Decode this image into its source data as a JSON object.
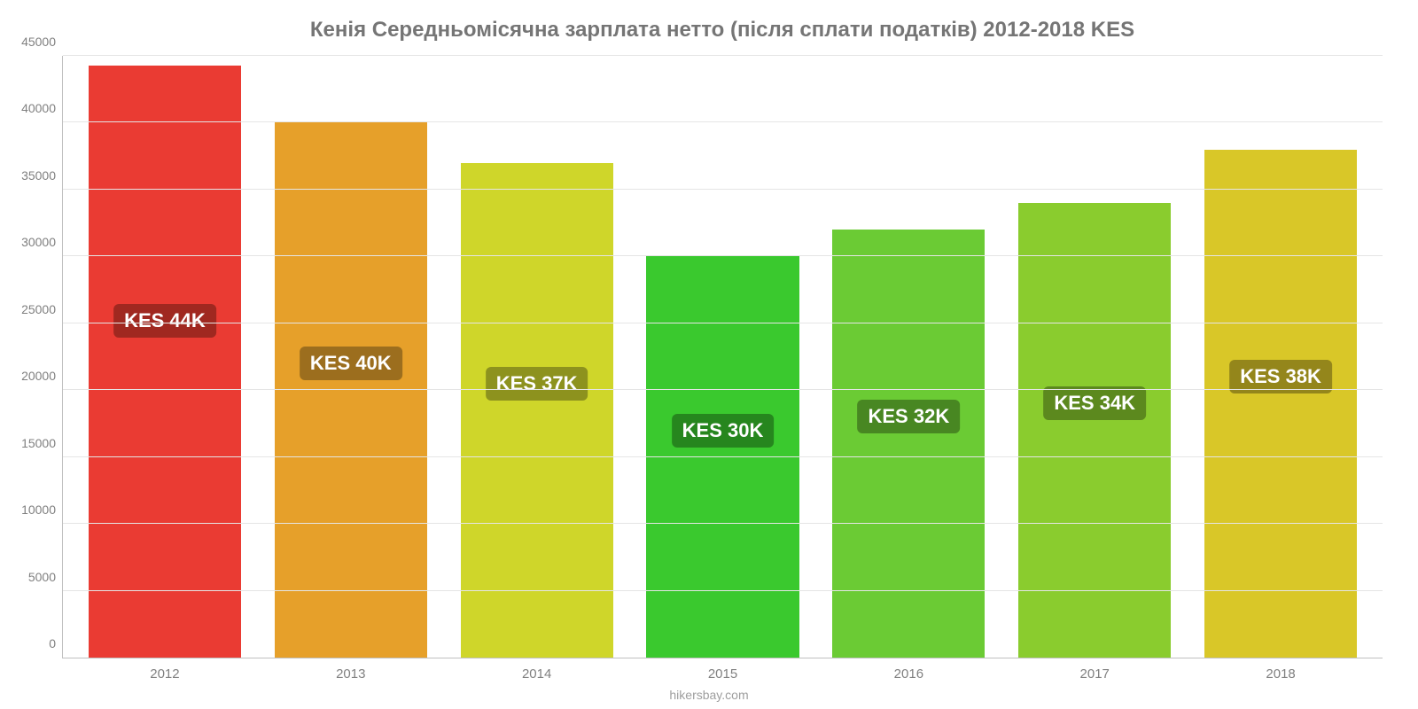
{
  "chart": {
    "type": "bar",
    "title": "Кенія Середньомісячна зарплата нетто (після сплати податків) 2012-2018 KES",
    "title_fontsize": 24,
    "title_color": "#757575",
    "attribution": "hikersbay.com",
    "background_color": "#ffffff",
    "grid_color": "#e5e5e5",
    "axis_color": "#c0c0c0",
    "tick_label_color": "#808080",
    "tick_label_fontsize": 14,
    "ylim": [
      0,
      45000
    ],
    "ytick_step": 5000,
    "yticks": [
      {
        "value": 0,
        "label": "0"
      },
      {
        "value": 5000,
        "label": "5000"
      },
      {
        "value": 10000,
        "label": "10000"
      },
      {
        "value": 15000,
        "label": "15000"
      },
      {
        "value": 20000,
        "label": "20000"
      },
      {
        "value": 25000,
        "label": "25000"
      },
      {
        "value": 30000,
        "label": "30000"
      },
      {
        "value": 35000,
        "label": "35000"
      },
      {
        "value": 40000,
        "label": "40000"
      },
      {
        "value": 45000,
        "label": "45000"
      }
    ],
    "bar_width": 0.82,
    "badge_fontsize": 22,
    "badge_text_color": "#ffffff",
    "data": [
      {
        "category": "2012",
        "value": 44300,
        "label": "KES 44K",
        "bar_color": "#ea3b33",
        "badge_color": "#a02820",
        "badge_y": 25200
      },
      {
        "category": "2013",
        "value": 40000,
        "label": "KES 40K",
        "bar_color": "#e6a02a",
        "badge_color": "#9c6e1e",
        "badge_y": 22000
      },
      {
        "category": "2014",
        "value": 37000,
        "label": "KES 37K",
        "bar_color": "#cfd62a",
        "badge_color": "#8d921e",
        "badge_y": 20500
      },
      {
        "category": "2015",
        "value": 30000,
        "label": "KES 30K",
        "bar_color": "#3ac92e",
        "badge_color": "#26861e",
        "badge_y": 17000
      },
      {
        "category": "2016",
        "value": 32000,
        "label": "KES 32K",
        "bar_color": "#6bcb34",
        "badge_color": "#488722",
        "badge_y": 18000
      },
      {
        "category": "2017",
        "value": 34000,
        "label": "KES 34K",
        "bar_color": "#8acc2e",
        "badge_color": "#5c891e",
        "badge_y": 19000
      },
      {
        "category": "2018",
        "value": 38000,
        "label": "KES 38K",
        "bar_color": "#d9c728",
        "badge_color": "#94861b",
        "badge_y": 21000
      }
    ]
  }
}
